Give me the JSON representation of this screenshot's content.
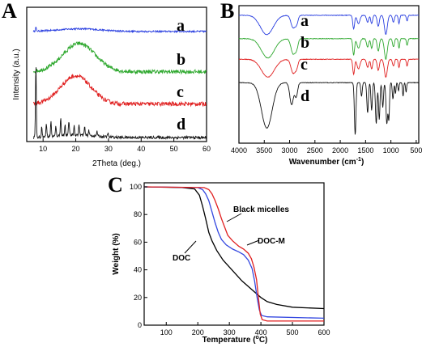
{
  "chart_data": [
    {
      "type": "line",
      "panel": "A",
      "xlabel": "2Theta (deg.)",
      "ylabel": "Intensity (a.u.)",
      "xlim": [
        5,
        60
      ],
      "xticks": [
        "10",
        "20",
        "30",
        "40",
        "50",
        "60"
      ],
      "series": [
        {
          "name": "a",
          "color": "#2a3fe0",
          "shape": "flat",
          "baseline": 0.82,
          "hump_center": 21,
          "hump_height": 0.02,
          "hump_width": 9,
          "noise": 0.006,
          "sharp_peaks": [
            [
              7.8,
              0.03
            ]
          ]
        },
        {
          "name": "b",
          "color": "#2ea82e",
          "shape": "hump",
          "baseline": 0.52,
          "hump_center": 21,
          "hump_height": 0.21,
          "hump_width": 7,
          "noise": 0.015,
          "sharp_peaks": []
        },
        {
          "name": "c",
          "color": "#e02020",
          "shape": "hump",
          "baseline": 0.28,
          "hump_center": 20,
          "hump_height": 0.21,
          "hump_width": 6.5,
          "noise": 0.015,
          "sharp_peaks": []
        },
        {
          "name": "d",
          "color": "#111111",
          "shape": "crystalline",
          "baseline": 0.03,
          "hump_center": 20,
          "hump_height": 0.02,
          "hump_width": 8,
          "noise": 0.01,
          "sharp_peaks": [
            [
              7.8,
              0.55
            ],
            [
              9.6,
              0.08
            ],
            [
              11.0,
              0.1
            ],
            [
              12.4,
              0.12
            ],
            [
              13.9,
              0.07
            ],
            [
              15.4,
              0.14
            ],
            [
              16.7,
              0.08
            ],
            [
              17.9,
              0.11
            ],
            [
              19.5,
              0.07
            ],
            [
              21.0,
              0.08
            ],
            [
              22.7,
              0.06
            ],
            [
              24.0,
              0.04
            ],
            [
              26.5,
              0.04
            ],
            [
              29.8,
              0.03
            ]
          ]
        }
      ]
    },
    {
      "type": "line",
      "panel": "B",
      "xlabel": "Wavenumber (cm",
      "xlabel_sup": "-1",
      "xlabel_end": ")",
      "xlim": [
        4000,
        450
      ],
      "xticks": [
        "4000",
        "3500",
        "3000",
        "2500",
        "2000",
        "1500",
        "1000",
        "500"
      ],
      "series": [
        {
          "name": "a",
          "color": "#2a3fe0",
          "baseline": 0.93,
          "dips": [
            [
              3450,
              0.14,
              180
            ],
            [
              2930,
              0.09,
              60
            ],
            [
              2860,
              0.05,
              40
            ],
            [
              1735,
              0.1,
              25
            ],
            [
              1640,
              0.06,
              40
            ],
            [
              1460,
              0.05,
              30
            ],
            [
              1380,
              0.06,
              25
            ],
            [
              1250,
              0.08,
              30
            ],
            [
              1100,
              0.14,
              40
            ],
            [
              950,
              0.05,
              25
            ],
            [
              840,
              0.06,
              20
            ],
            [
              680,
              0.04,
              20
            ]
          ]
        },
        {
          "name": "b",
          "color": "#2ea82e",
          "baseline": 0.76,
          "dips": [
            [
              3430,
              0.14,
              180
            ],
            [
              2930,
              0.11,
              60
            ],
            [
              2860,
              0.06,
              40
            ],
            [
              1735,
              0.12,
              25
            ],
            [
              1640,
              0.07,
              40
            ],
            [
              1460,
              0.06,
              30
            ],
            [
              1380,
              0.07,
              25
            ],
            [
              1250,
              0.09,
              30
            ],
            [
              1100,
              0.15,
              40
            ],
            [
              950,
              0.06,
              25
            ],
            [
              840,
              0.07,
              20
            ],
            [
              680,
              0.05,
              20
            ]
          ]
        },
        {
          "name": "c",
          "color": "#e02020",
          "baseline": 0.61,
          "dips": [
            [
              3430,
              0.13,
              180
            ],
            [
              2930,
              0.1,
              60
            ],
            [
              2860,
              0.05,
              40
            ],
            [
              1735,
              0.11,
              25
            ],
            [
              1640,
              0.07,
              40
            ],
            [
              1460,
              0.06,
              30
            ],
            [
              1380,
              0.07,
              25
            ],
            [
              1250,
              0.08,
              30
            ],
            [
              1100,
              0.13,
              40
            ],
            [
              950,
              0.05,
              25
            ],
            [
              840,
              0.06,
              20
            ],
            [
              680,
              0.05,
              20
            ]
          ]
        },
        {
          "name": "d",
          "color": "#111111",
          "baseline": 0.44,
          "dips": [
            [
              3450,
              0.33,
              150
            ],
            [
              2960,
              0.16,
              50
            ],
            [
              2870,
              0.1,
              40
            ],
            [
              1705,
              0.38,
              22
            ],
            [
              1580,
              0.1,
              20
            ],
            [
              1460,
              0.22,
              22
            ],
            [
              1380,
              0.2,
              20
            ],
            [
              1290,
              0.3,
              22
            ],
            [
              1230,
              0.27,
              20
            ],
            [
              1160,
              0.18,
              20
            ],
            [
              1080,
              0.3,
              24
            ],
            [
              1040,
              0.26,
              18
            ],
            [
              960,
              0.12,
              18
            ],
            [
              910,
              0.08,
              15
            ],
            [
              850,
              0.06,
              15
            ],
            [
              760,
              0.1,
              15
            ],
            [
              700,
              0.07,
              15
            ]
          ]
        }
      ]
    },
    {
      "type": "line",
      "panel": "C",
      "xlabel": "Temperature (",
      "xlabel_deg": "o",
      "xlabel_end": "C)",
      "ylabel": "Weight (%)",
      "xlim": [
        30,
        600
      ],
      "ylim": [
        0,
        100
      ],
      "xticks": [
        "100",
        "200",
        "300",
        "400",
        "500",
        "600"
      ],
      "yticks": [
        "0",
        "20",
        "40",
        "60",
        "80",
        "100"
      ],
      "series": [
        {
          "name": "DOC",
          "color": "#000000",
          "points": [
            [
              30,
              100
            ],
            [
              150,
              99.5
            ],
            [
              190,
              98.5
            ],
            [
              205,
              94
            ],
            [
              215,
              86
            ],
            [
              225,
              77
            ],
            [
              235,
              67
            ],
            [
              245,
              61
            ],
            [
              260,
              54
            ],
            [
              280,
              47
            ],
            [
              300,
              42
            ],
            [
              320,
              37
            ],
            [
              340,
              32
            ],
            [
              360,
              28
            ],
            [
              380,
              24
            ],
            [
              400,
              20
            ],
            [
              420,
              17
            ],
            [
              450,
              15
            ],
            [
              500,
              13
            ],
            [
              600,
              12
            ]
          ]
        },
        {
          "name": "DOC-M",
          "color": "#3347e0",
          "points": [
            [
              30,
              100
            ],
            [
              200,
              99.5
            ],
            [
              215,
              98
            ],
            [
              225,
              95
            ],
            [
              235,
              90
            ],
            [
              245,
              82
            ],
            [
              255,
              74
            ],
            [
              265,
              67
            ],
            [
              275,
              62
            ],
            [
              290,
              58
            ],
            [
              310,
              55
            ],
            [
              330,
              53
            ],
            [
              345,
              51
            ],
            [
              360,
              47
            ],
            [
              372,
              41
            ],
            [
              380,
              32
            ],
            [
              388,
              20
            ],
            [
              395,
              11
            ],
            [
              402,
              7
            ],
            [
              420,
              6
            ],
            [
              600,
              5
            ]
          ]
        },
        {
          "name": "Black micelles",
          "color": "#e02020",
          "points": [
            [
              30,
              100
            ],
            [
              220,
              99.5
            ],
            [
              235,
              98
            ],
            [
              245,
              95
            ],
            [
              255,
              90
            ],
            [
              265,
              84
            ],
            [
              275,
              77
            ],
            [
              285,
              71
            ],
            [
              295,
              65
            ],
            [
              310,
              61
            ],
            [
              330,
              57
            ],
            [
              345,
              55
            ],
            [
              360,
              52
            ],
            [
              370,
              48
            ],
            [
              378,
              42
            ],
            [
              386,
              33
            ],
            [
              392,
              20
            ],
            [
              398,
              8
            ],
            [
              404,
              4
            ],
            [
              420,
              3
            ],
            [
              600,
              3
            ]
          ]
        }
      ]
    }
  ],
  "labels": {
    "panel_a": "A",
    "panel_b": "B",
    "panel_c": "C",
    "a_xlabel": "2Theta (deg.)",
    "a_ylabel": "Intensity (a.u.)",
    "b_xlabel_main": "Wavenumber (cm",
    "b_xlabel_sup": "-1",
    "b_xlabel_end": ")",
    "c_xlabel_main": "Temperature (",
    "c_xlabel_deg": "o",
    "c_xlabel_end": "C)",
    "c_ylabel": "Weight (%)",
    "curve_a": "a",
    "curve_b": "b",
    "curve_c": "c",
    "curve_d": "d",
    "ann_black": "Black micelles",
    "ann_docm": "DOC-M",
    "ann_doc": "DOC"
  }
}
